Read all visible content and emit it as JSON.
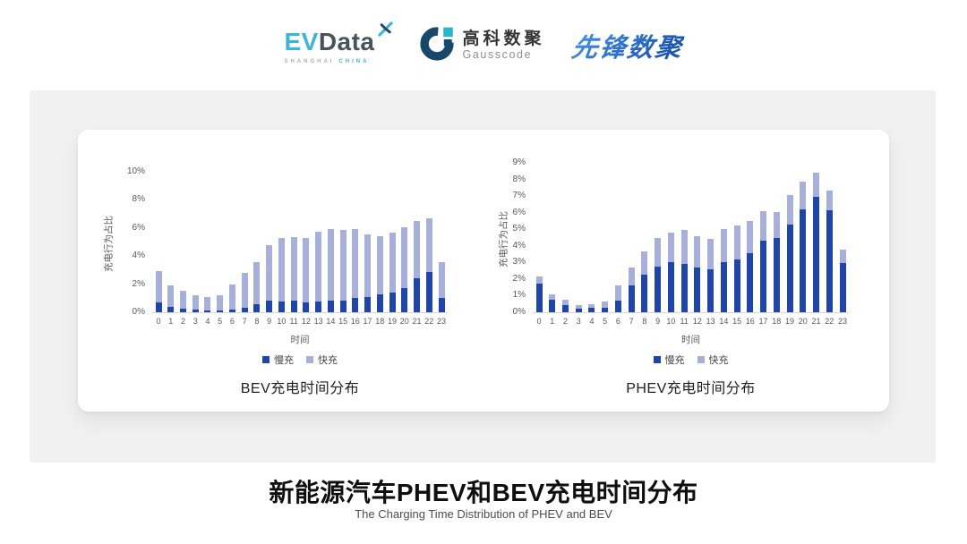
{
  "header": {
    "evdata": {
      "ev": "EV",
      "data": "Data",
      "sub_left": "SHANGHAI",
      "sub_right": "CHINA"
    },
    "gausscode": {
      "name_cn": "高科数聚",
      "name_en": "Gausscode"
    },
    "pioneer": {
      "text": "先锋数聚"
    }
  },
  "colors": {
    "slow": "#1f45a8",
    "fast": "#a6b0db",
    "baseline": "#d9d9d9",
    "axis_text": "#595959"
  },
  "chart_data": [
    {
      "type": "bar",
      "stacked": true,
      "title": "BEV充电时间分布",
      "ylabel": "充电行为占比",
      "xlabel": "时间",
      "ymax": 10,
      "ylim": [
        0,
        10
      ],
      "grid": false,
      "legend_position": "bottom",
      "ytick_labels": [
        "0%",
        "2%",
        "4%",
        "6%",
        "8%",
        "10%"
      ],
      "categories": [
        "0",
        "1",
        "2",
        "3",
        "4",
        "5",
        "6",
        "7",
        "8",
        "9",
        "10",
        "11",
        "12",
        "13",
        "14",
        "15",
        "16",
        "17",
        "18",
        "19",
        "20",
        "21",
        "22",
        "23"
      ],
      "series": [
        {
          "name": "慢充",
          "color_key": "slow",
          "values": [
            0.7,
            0.4,
            0.25,
            0.2,
            0.15,
            0.15,
            0.2,
            0.35,
            0.55,
            0.85,
            0.75,
            0.8,
            0.7,
            0.75,
            0.8,
            0.8,
            1.0,
            1.1,
            1.25,
            1.4,
            1.75,
            2.45,
            2.85,
            1.0
          ]
        },
        {
          "name": "快充",
          "color_key": "fast",
          "values": [
            2.2,
            1.5,
            1.25,
            1.0,
            0.95,
            1.05,
            1.8,
            2.45,
            3.05,
            3.9,
            4.55,
            4.55,
            4.6,
            5.0,
            5.1,
            5.05,
            4.9,
            4.45,
            4.15,
            4.3,
            4.3,
            4.05,
            3.85,
            2.6
          ]
        }
      ]
    },
    {
      "type": "bar",
      "stacked": true,
      "title": "PHEV充电时间分布",
      "ylabel": "充电行为占比",
      "xlabel": "时间",
      "ymax": 9,
      "ylim": [
        0,
        9
      ],
      "grid": false,
      "legend_position": "bottom",
      "ytick_labels": [
        "0%",
        "1%",
        "2%",
        "3%",
        "4%",
        "5%",
        "6%",
        "7%",
        "8%",
        "9%"
      ],
      "categories": [
        "0",
        "1",
        "2",
        "3",
        "4",
        "5",
        "6",
        "7",
        "8",
        "9",
        "10",
        "11",
        "12",
        "13",
        "14",
        "15",
        "16",
        "17",
        "18",
        "19",
        "20",
        "21",
        "22",
        "23"
      ],
      "series": [
        {
          "name": "慢充",
          "color_key": "slow",
          "values": [
            1.7,
            0.75,
            0.45,
            0.2,
            0.25,
            0.25,
            0.7,
            1.6,
            2.25,
            2.75,
            3.0,
            2.9,
            2.7,
            2.6,
            3.0,
            3.2,
            3.55,
            4.3,
            4.5,
            5.3,
            6.2,
            6.95,
            6.15,
            2.95
          ]
        },
        {
          "name": "快充",
          "color_key": "fast",
          "values": [
            0.45,
            0.35,
            0.3,
            0.25,
            0.25,
            0.4,
            0.9,
            1.1,
            1.4,
            1.75,
            1.8,
            2.05,
            1.9,
            1.8,
            2.0,
            2.05,
            1.95,
            1.8,
            1.55,
            1.75,
            1.65,
            1.45,
            1.2,
            0.8
          ]
        }
      ]
    }
  ],
  "footer": {
    "title": "新能源汽车PHEV和BEV充电时间分布",
    "subtitle": "The Charging Time Distribution of PHEV and BEV"
  }
}
